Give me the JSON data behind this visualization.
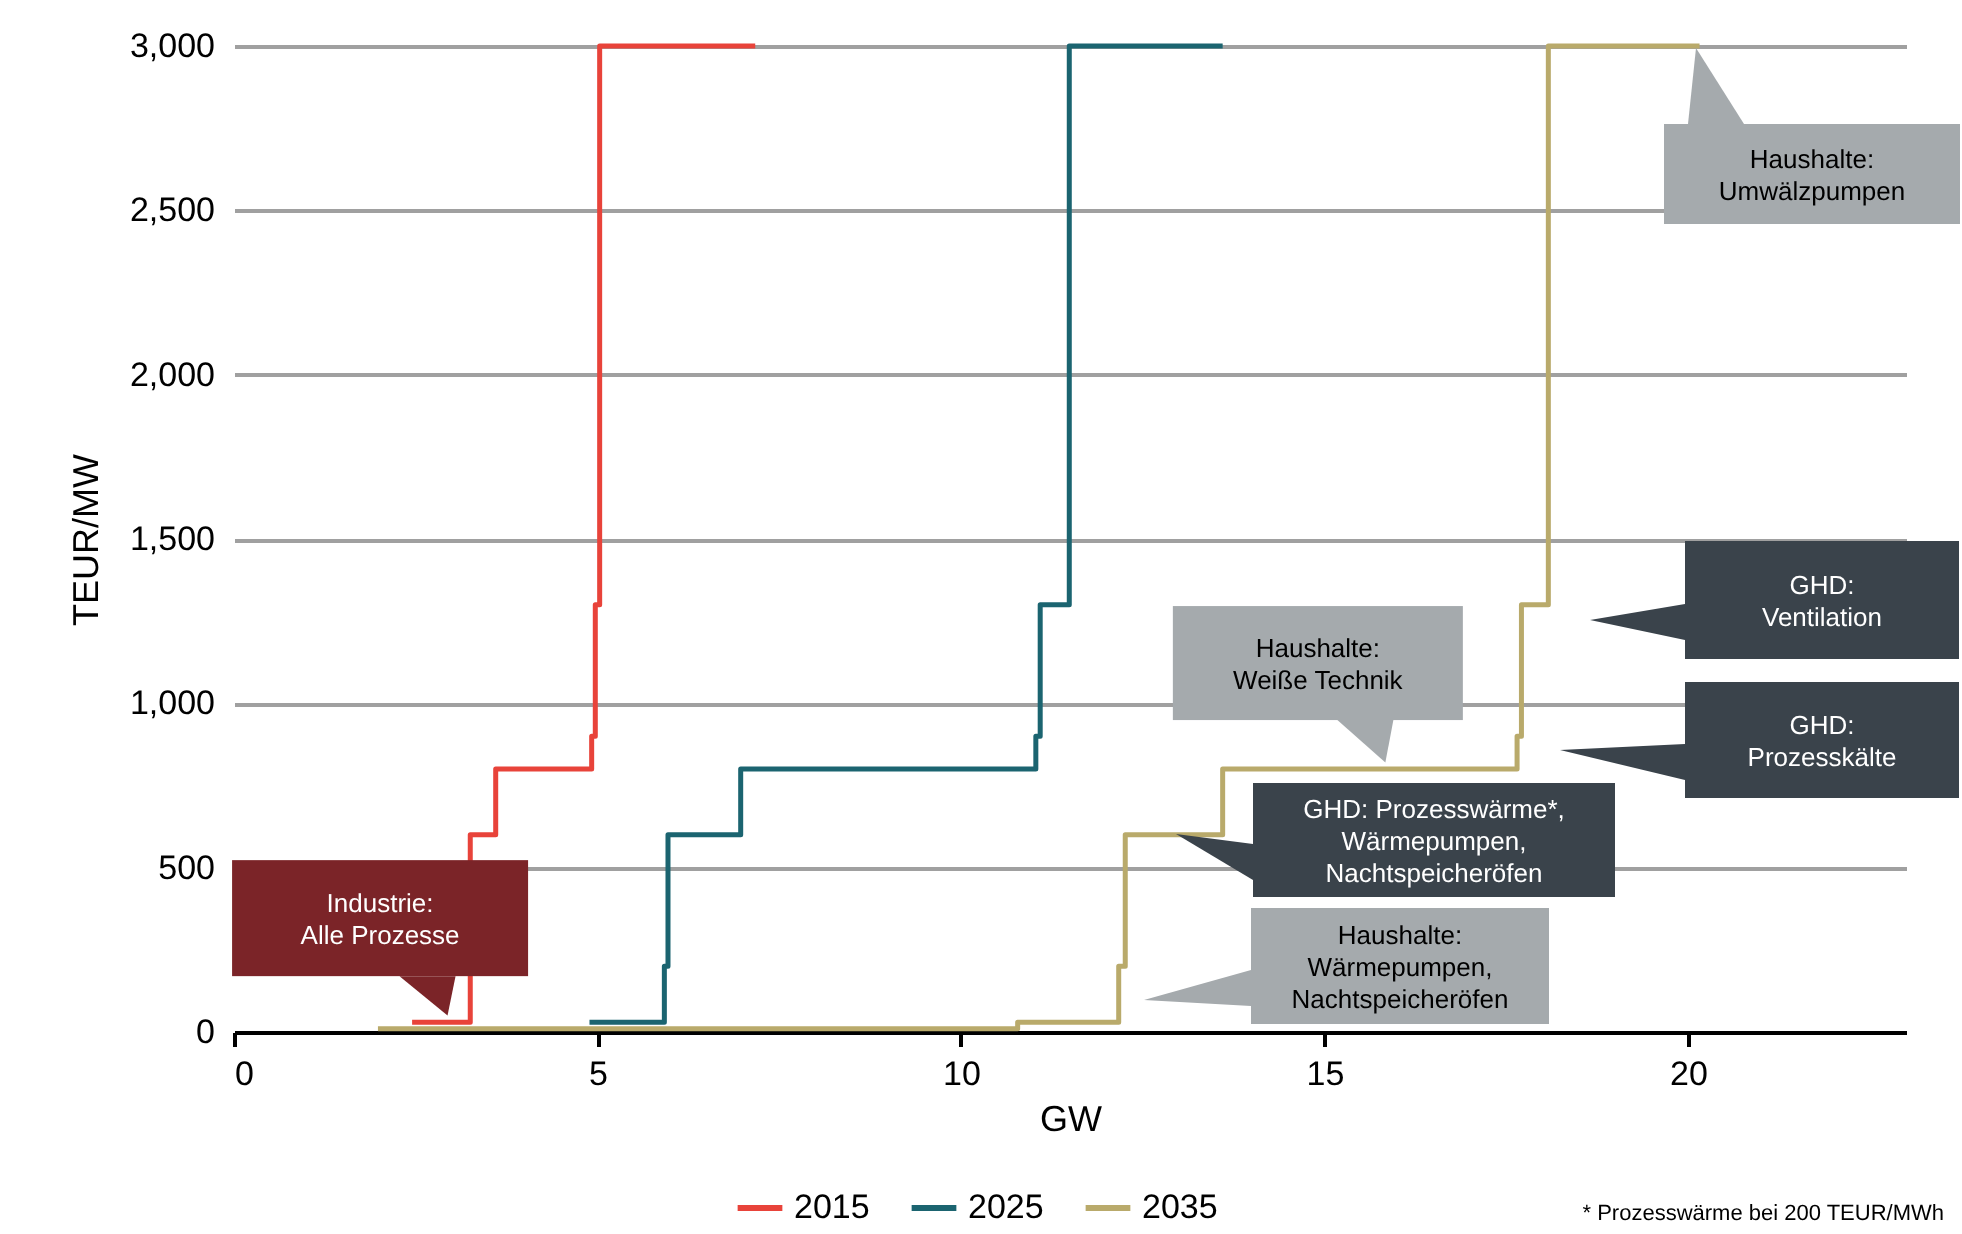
{
  "chart_data": {
    "type": "step",
    "xlabel": "GW",
    "ylabel": "TEUR/MW",
    "xlim": [
      0,
      23
    ],
    "ylim": [
      0,
      3000
    ],
    "xticks": [
      0,
      5,
      10,
      15,
      20
    ],
    "yticks": [
      0,
      500,
      {
        "value": 1000,
        "label": "1,000"
      },
      {
        "value": 1500,
        "label": "1,500"
      },
      {
        "value": 2000,
        "label": "2,000"
      },
      {
        "value": 2500,
        "label": "2,500"
      },
      {
        "value": 3000,
        "label": "3,000"
      }
    ],
    "grid": "y",
    "legend": "bottom",
    "series": [
      {
        "name": "2015",
        "color": "#e8433a",
        "x": [
          2.45,
          3.25,
          3.6,
          4.92,
          4.97,
          5.03,
          7.17
        ],
        "values": [
          30,
          600,
          800,
          900,
          1300,
          3000,
          3000
        ]
      },
      {
        "name": "2025",
        "color": "#1b6470",
        "x": [
          4.89,
          5.92,
          5.97,
          6.97,
          11.03,
          11.09,
          11.49,
          13.6
        ],
        "values": [
          30,
          200,
          600,
          800,
          900,
          1300,
          3000,
          3000
        ]
      },
      {
        "name": "2035",
        "color": "#b9aa6b",
        "x": [
          1.98,
          10.78,
          12.17,
          12.26,
          13.6,
          17.65,
          17.71,
          18.08,
          20.16
        ],
        "values": [
          10,
          30,
          200,
          600,
          800,
          900,
          1300,
          3000,
          3000
        ]
      }
    ],
    "annotations": [
      {
        "text": "Industrie:\nAlle Prozesse",
        "x": 3.0,
        "y": 30
      },
      "Haushalte:\nUmwälzpumpen",
      "GHD:\nVentilation",
      {
        "text": "Haushalte:\nWeiße Technik",
        "x": 15.9,
        "y": 800
      },
      "GHD:\nProzesskälte",
      "GHD: Prozesswärme*,\nWärmepumpen,\nNachtspeicheröfen",
      "Haushalte:\nWärmepumpen,\nNachtspeicheröfen",
      "* Prozesswärme bei 200 TEUR/MWh"
    ]
  }
}
